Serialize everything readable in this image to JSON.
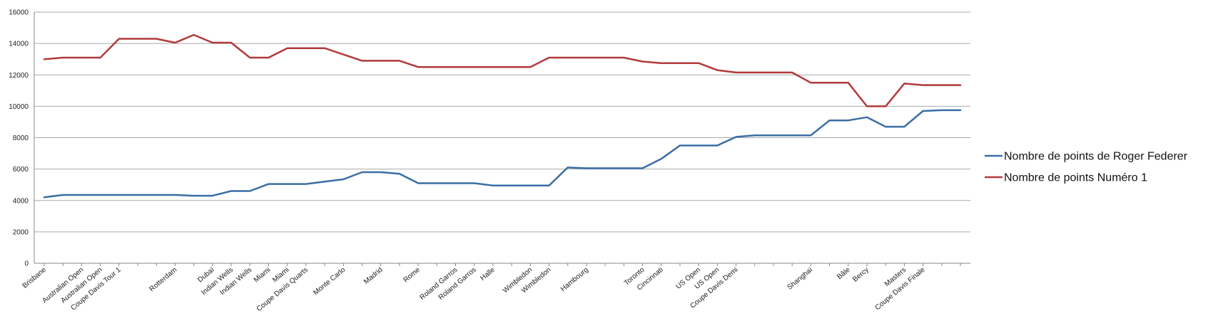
{
  "chart_data": {
    "type": "line",
    "ylim": [
      0,
      16000
    ],
    "yticks": [
      0,
      2000,
      4000,
      6000,
      8000,
      10000,
      12000,
      14000,
      16000
    ],
    "grid": true,
    "legend_position": "right",
    "num_points": 50,
    "x_labels": [
      {
        "i": 0,
        "label": "Brisbane"
      },
      {
        "i": 2,
        "label": "Australian Open"
      },
      {
        "i": 3,
        "label": "Australian Open"
      },
      {
        "i": 4,
        "label": "Coupe Davis Tour 1"
      },
      {
        "i": 7,
        "label": "Rotterdam"
      },
      {
        "i": 9,
        "label": "Dubaï"
      },
      {
        "i": 10,
        "label": "Indian Wells"
      },
      {
        "i": 11,
        "label": "Indian Wells"
      },
      {
        "i": 12,
        "label": "Miami"
      },
      {
        "i": 13,
        "label": "Miami"
      },
      {
        "i": 14,
        "label": "Coupe Davis Quarts"
      },
      {
        "i": 16,
        "label": "Monte Carlo"
      },
      {
        "i": 18,
        "label": "Madrid"
      },
      {
        "i": 20,
        "label": "Rome"
      },
      {
        "i": 22,
        "label": "Roland Garros"
      },
      {
        "i": 23,
        "label": "Roland Garros"
      },
      {
        "i": 24,
        "label": "Halle"
      },
      {
        "i": 26,
        "label": "Wimbledon"
      },
      {
        "i": 27,
        "label": "Wimbledon"
      },
      {
        "i": 29,
        "label": "Hambourg"
      },
      {
        "i": 32,
        "label": "Toronto"
      },
      {
        "i": 33,
        "label": "Cincinnati"
      },
      {
        "i": 35,
        "label": "US Open"
      },
      {
        "i": 36,
        "label": "US Open"
      },
      {
        "i": 37,
        "label": "Coupe Davis Demi"
      },
      {
        "i": 41,
        "label": "Shanghaï"
      },
      {
        "i": 43,
        "label": "Bâle"
      },
      {
        "i": 44,
        "label": "Bercy"
      },
      {
        "i": 46,
        "label": "Masters"
      },
      {
        "i": 47,
        "label": "Coupe Davis Finale"
      }
    ],
    "series": [
      {
        "name": "Nombre de points de Roger Federer",
        "color": "#3a6ea5",
        "values": [
          4200,
          4350,
          4350,
          4350,
          4350,
          4350,
          4350,
          4350,
          4300,
          4300,
          4600,
          4600,
          5050,
          5050,
          5050,
          5200,
          5350,
          5800,
          5800,
          5700,
          5100,
          5100,
          5100,
          5100,
          4950,
          4950,
          4950,
          4950,
          6100,
          6050,
          6050,
          6050,
          6050,
          6650,
          7500,
          7500,
          7500,
          8050,
          8150,
          8150,
          8150,
          8150,
          9100,
          9100,
          9300,
          8700,
          8700,
          9700,
          9750,
          9750
        ]
      },
      {
        "name": "Nombre de points Numéro 1",
        "color": "#b13a3a",
        "values": [
          13000,
          13100,
          13100,
          13100,
          14300,
          14300,
          14300,
          14050,
          14550,
          14050,
          14050,
          13100,
          13100,
          13700,
          13700,
          13700,
          13300,
          12900,
          12900,
          12900,
          12500,
          12500,
          12500,
          12500,
          12500,
          12500,
          12500,
          13100,
          13100,
          13100,
          13100,
          13100,
          12850,
          12750,
          12750,
          12750,
          12300,
          12150,
          12150,
          12150,
          12150,
          11500,
          11500,
          11500,
          10000,
          10000,
          11450,
          11350,
          11350,
          11350
        ]
      }
    ]
  }
}
